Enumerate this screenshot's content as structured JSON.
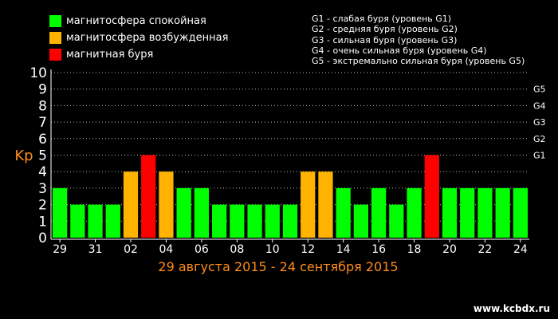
{
  "legend": [
    {
      "label": "магнитосфера спокойная",
      "color": "#00ff00"
    },
    {
      "label": "магнитосфера возбужденная",
      "color": "#ffb300"
    },
    {
      "label": "магнитная буря",
      "color": "#ff0000"
    }
  ],
  "storm_levels": [
    "G1 - слабая буря (уровень G1)",
    "G2 - средняя буря (уровень G2)",
    "G3 - сильная буря (уровень G3)",
    "G4 - очень сильная буря (уровень G4)",
    "G5 - экстремально сильная буря (уровень G5)"
  ],
  "watermark": "www.kcbdx.ru",
  "chart_data": {
    "type": "bar",
    "title": "29 августа 2015 - 24 сентября 2015",
    "ylabel": "Kp",
    "ylim": [
      0,
      10
    ],
    "yticks": [
      "0",
      "1",
      "2",
      "3",
      "4",
      "5",
      "6",
      "7",
      "8",
      "9",
      "10"
    ],
    "right_ticks": [
      {
        "label": "G1",
        "value": 5
      },
      {
        "label": "G2",
        "value": 6
      },
      {
        "label": "G3",
        "value": 7
      },
      {
        "label": "G4",
        "value": 8
      },
      {
        "label": "G5",
        "value": 9
      }
    ],
    "xtick_labels": [
      "29",
      "31",
      "02",
      "04",
      "06",
      "08",
      "10",
      "12",
      "14",
      "16",
      "18",
      "20",
      "22",
      "24"
    ],
    "categories": [
      "29",
      "30",
      "31",
      "01",
      "02",
      "03",
      "04",
      "05",
      "06",
      "07",
      "08",
      "09",
      "10",
      "11",
      "12",
      "13",
      "14",
      "15",
      "16",
      "17",
      "18",
      "19",
      "20",
      "21",
      "22",
      "23",
      "24"
    ],
    "values": [
      3,
      2,
      2,
      2,
      4,
      5,
      4,
      3,
      3,
      2,
      2,
      2,
      2,
      2,
      4,
      4,
      3,
      2,
      3,
      2,
      3,
      5,
      3,
      3,
      3,
      3,
      3
    ],
    "colors": {
      "calm": "#00ff00",
      "active": "#ffb300",
      "storm": "#ff0000",
      "axis_title": "#ff8c1a",
      "axis": "#ffffff"
    },
    "grid": true
  }
}
